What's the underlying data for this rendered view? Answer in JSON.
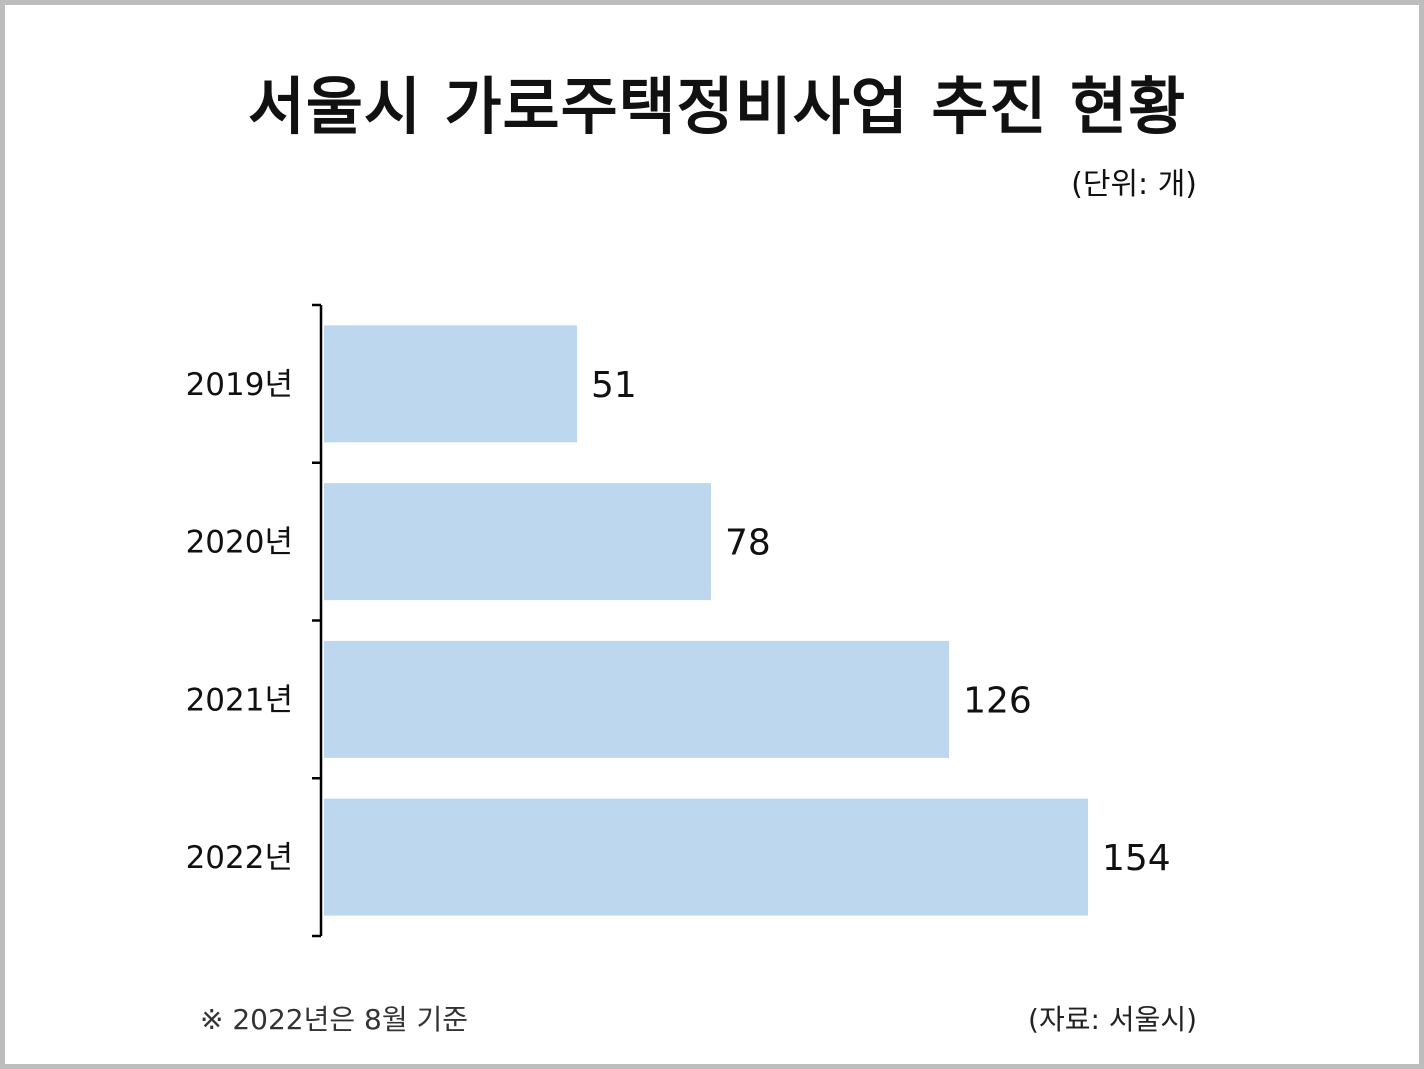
{
  "unit_label": "(단위: 개)",
  "footnote": "※ 2022년은 8월 기준",
  "source": "(자료: 서울시)",
  "chart_data": {
    "type": "bar",
    "orientation": "horizontal",
    "title": "서울시 가로주택정비사업 추진 현황",
    "categories": [
      "2019년",
      "2020년",
      "2021년",
      "2022년"
    ],
    "values": [
      51,
      78,
      126,
      154
    ],
    "data_labels": [
      "51",
      "78",
      "126",
      "154"
    ],
    "xlim": [
      0,
      154
    ],
    "bar_color": "#bdd7ee",
    "grid": false,
    "legend": "none"
  }
}
